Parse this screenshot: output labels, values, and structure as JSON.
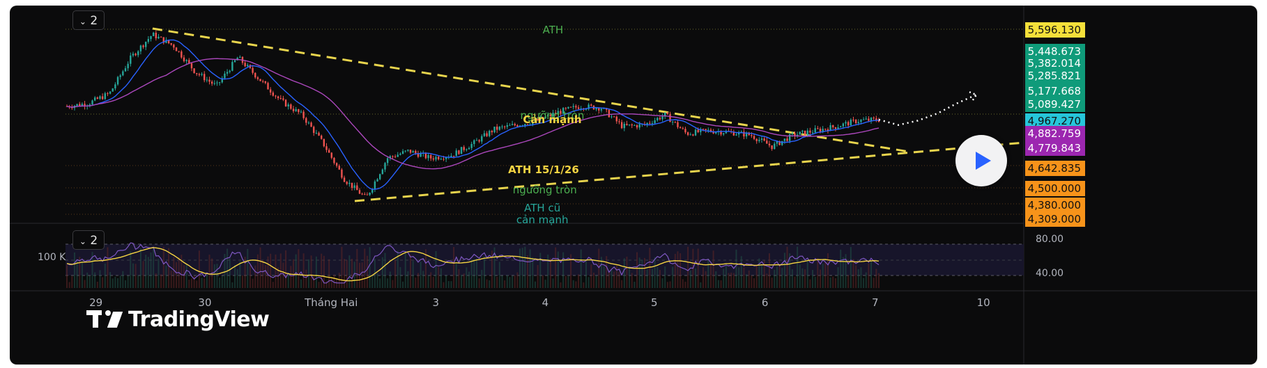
{
  "toolbar": {
    "main_collapse_label": "2",
    "osc_collapse_label": "2"
  },
  "brand": {
    "logo_text": "TradingView",
    "icon": "tradingview-logo-icon"
  },
  "annotations": [
    {
      "text": "ATH",
      "color": "#4caf50"
    },
    {
      "text": "ngưỡng tròn",
      "color": "#4caf50"
    },
    {
      "text": "Cản mạnh",
      "color": "#f5d442"
    },
    {
      "text": "ATH 15/1/26",
      "color": "#f5d442"
    },
    {
      "text": "ngưỡng tròn",
      "color": "#4caf50"
    },
    {
      "text": "ATH cũ",
      "color": "#26a69a"
    },
    {
      "text": "cản mạnh",
      "color": "#26a69a"
    }
  ],
  "price_labels": [
    {
      "text": "5,596.130",
      "bg": "#f5e03a",
      "fg": "#111111"
    },
    {
      "text": "5,448.673",
      "bg": "#0f9b7a",
      "fg": "#ffffff"
    },
    {
      "text": "5,382.014",
      "bg": "#0f9b7a",
      "fg": "#ffffff"
    },
    {
      "text": "5,285.821",
      "bg": "#0f9b7a",
      "fg": "#ffffff"
    },
    {
      "text": "5,177.668",
      "bg": "#0f9b7a",
      "fg": "#ffffff"
    },
    {
      "text": "5,089.427",
      "bg": "#0f9b7a",
      "fg": "#ffffff"
    },
    {
      "text": "4,967.270",
      "bg": "#26c6da",
      "fg": "#111111"
    },
    {
      "text": "4,882.759",
      "bg": "#9c27b0",
      "fg": "#ffffff"
    },
    {
      "text": "4,779.843",
      "bg": "#9c27b0",
      "fg": "#ffffff"
    },
    {
      "text": "4,642.835",
      "bg": "#f7931a",
      "fg": "#111111"
    },
    {
      "text": "4,500.000",
      "bg": "#f7931a",
      "fg": "#111111"
    },
    {
      "text": "4,380.000",
      "bg": "#f7931a",
      "fg": "#111111"
    },
    {
      "text": "4,309.000",
      "bg": "#f7931a",
      "fg": "#111111"
    }
  ],
  "oscillator": {
    "volume_label": "100 K",
    "upper_level": "80.00",
    "lower_level": "40.00"
  },
  "time_axis": [
    "29",
    "30",
    "Tháng Hai",
    "3",
    "4",
    "5",
    "6",
    "7",
    "10"
  ],
  "chart_data": {
    "type": "candlestick",
    "colors": {
      "up": "#26a69a",
      "down": "#ef5350",
      "ma_fast": "#2962ff",
      "ma_slow": "#ab47bc",
      "trendline": "#e8d44d",
      "rsi": "#7e57c2",
      "rsi_ma": "#f5d442"
    },
    "ylim": [
      4309,
      5596
    ],
    "price_path": [
      [
        "29",
        5060
      ],
      [
        "29",
        5080
      ],
      [
        "29",
        5150
      ],
      [
        "29",
        5400
      ],
      [
        "29",
        5560
      ],
      [
        "30",
        5480
      ],
      [
        "30",
        5300
      ],
      [
        "30",
        5200
      ],
      [
        "30",
        5400
      ],
      [
        "30",
        5250
      ],
      [
        "30",
        5100
      ],
      [
        "30",
        5000
      ],
      [
        "Tháng Hai",
        4800
      ],
      [
        "Tháng Hai",
        4550
      ],
      [
        "Tháng Hai",
        4420
      ],
      [
        "Tháng Hai",
        4700
      ],
      [
        "3",
        4750
      ],
      [
        "3",
        4700
      ],
      [
        "3",
        4720
      ],
      [
        "3",
        4800
      ],
      [
        "3",
        4900
      ],
      [
        "4",
        4930
      ],
      [
        "4",
        4960
      ],
      [
        "4",
        5020
      ],
      [
        "4",
        5060
      ],
      [
        "4",
        5050
      ],
      [
        "5",
        4920
      ],
      [
        "5",
        4930
      ],
      [
        "5",
        5000
      ],
      [
        "5",
        4870
      ],
      [
        "5",
        4890
      ],
      [
        "6",
        4880
      ],
      [
        "6",
        4860
      ],
      [
        "6",
        4780
      ],
      [
        "6",
        4860
      ],
      [
        "6",
        4890
      ],
      [
        "7",
        4920
      ],
      [
        "7",
        4960
      ],
      [
        "7",
        4967
      ]
    ],
    "projection": [
      4967,
      4930,
      4960,
      5010,
      5080,
      5140
    ],
    "rsi_levels": [
      80,
      40
    ]
  }
}
